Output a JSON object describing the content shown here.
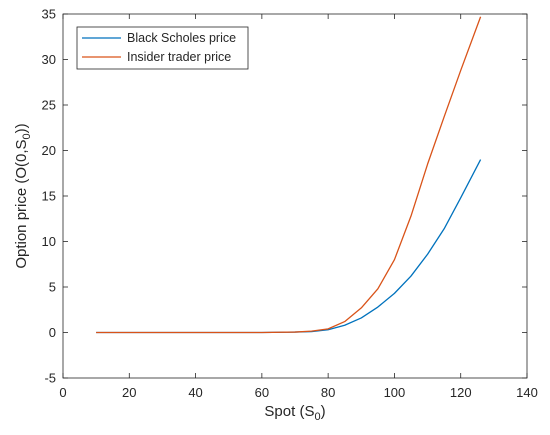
{
  "chart_data": {
    "type": "line",
    "title": "",
    "xlabel": "Spot (S",
    "xlabel_sub": "0",
    "xlabel_suffix": ")",
    "ylabel": "Option price (O(0,S",
    "ylabel_sub": "0",
    "ylabel_suffix": "))",
    "xlim": [
      0,
      140
    ],
    "ylim": [
      -5,
      35
    ],
    "xticks": [
      0,
      20,
      40,
      60,
      80,
      100,
      120,
      140
    ],
    "yticks": [
      -5,
      0,
      5,
      10,
      15,
      20,
      25,
      30,
      35
    ],
    "grid": false,
    "legend_position": "top-left",
    "series": [
      {
        "name": "Black Scholes price",
        "color": "#0072BD",
        "x": [
          10,
          60,
          70,
          75,
          80,
          85,
          90,
          95,
          100,
          105,
          110,
          115,
          120,
          126
        ],
        "y": [
          0,
          0,
          0.05,
          0.1,
          0.3,
          0.8,
          1.6,
          2.8,
          4.3,
          6.2,
          8.6,
          11.4,
          14.8,
          19.0
        ]
      },
      {
        "name": "Insider trader price",
        "color": "#D95319",
        "x": [
          10,
          60,
          70,
          75,
          80,
          85,
          90,
          95,
          100,
          105,
          110,
          115,
          120,
          126
        ],
        "y": [
          0,
          0,
          0.05,
          0.15,
          0.4,
          1.2,
          2.7,
          4.8,
          8.0,
          12.8,
          18.5,
          23.7,
          28.8,
          34.7
        ]
      }
    ]
  }
}
